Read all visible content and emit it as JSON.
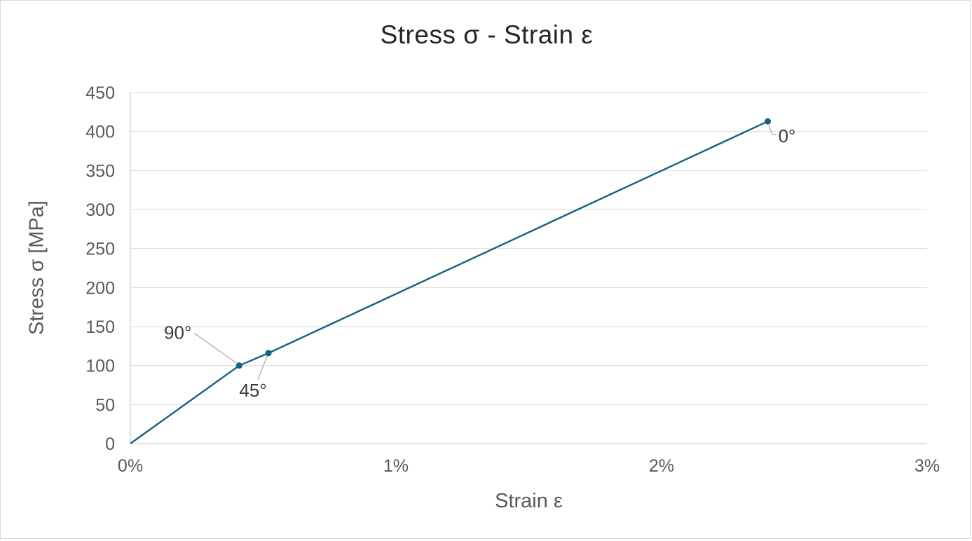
{
  "window": {
    "background_color": "#ffffff",
    "border_color": "#d9d9d9"
  },
  "chart_data": {
    "type": "line",
    "title": "Stress σ - Strain ε",
    "xlabel": "Strain ε",
    "ylabel": "Stress σ [MPa]",
    "xlim": [
      0,
      3
    ],
    "ylim": [
      0,
      450
    ],
    "grid": "horizontal",
    "legend_position": "none",
    "x_ticks": [
      {
        "value": 0,
        "label": "0%"
      },
      {
        "value": 1,
        "label": "1%"
      },
      {
        "value": 2,
        "label": "2%"
      },
      {
        "value": 3,
        "label": "3%"
      }
    ],
    "y_ticks": [
      0,
      50,
      100,
      150,
      200,
      250,
      300,
      350,
      400,
      450
    ],
    "series": [
      {
        "color": "#156082",
        "points": [
          {
            "strain_pct": 0,
            "stress_mpa": 0,
            "marker": false,
            "label": ""
          },
          {
            "strain_pct": 0.41,
            "stress_mpa": 100,
            "marker": true,
            "label": "90°"
          },
          {
            "strain_pct": 0.52,
            "stress_mpa": 116,
            "marker": true,
            "label": "45°"
          },
          {
            "strain_pct": 2.4,
            "stress_mpa": 413,
            "marker": true,
            "label": "0°"
          }
        ]
      }
    ],
    "style": {
      "line_color": "#156082",
      "marker_color": "#156082",
      "gridline_color": "#dcdcdc",
      "axis_line_color": "#c3c3c3",
      "tick_text_color": "#595959",
      "title_text_color": "#262626",
      "axis_title_color": "#595959",
      "data_label_color": "#3b3b3b",
      "leader_line_color": "#a6a6a6"
    }
  }
}
